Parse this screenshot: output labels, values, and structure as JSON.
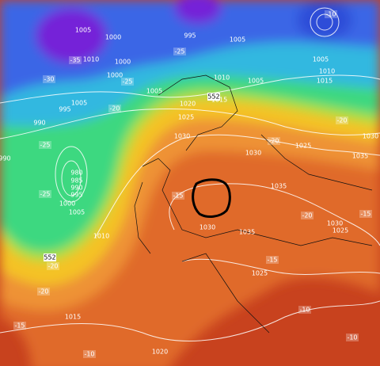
{
  "isobar_labels": [
    "1005",
    "1000",
    "1010",
    "1000",
    "995",
    "1005",
    "1005",
    "1010",
    "1015",
    "1010",
    "1005",
    "1000",
    "1005",
    "1020",
    "1015",
    "1005",
    "995",
    "990",
    "1025",
    "1030",
    "1030",
    "1025",
    "1030",
    "1035",
    "1035",
    "980",
    "985",
    "990",
    "995",
    "1000",
    "1005",
    "1010",
    "1030",
    "1035",
    "1030",
    "1025",
    "1025",
    "1015",
    "1020",
    "990"
  ],
  "temperature_labels": [
    "-35",
    "-30",
    "-25",
    "-25",
    "-20",
    "-25",
    "-25",
    "-20",
    "-20",
    "-15",
    "-20",
    "-15",
    "-15",
    "-20",
    "-20",
    "-15",
    "-10",
    "-10",
    "-10",
    "-10"
  ],
  "geopotential_labels": [
    "552",
    "552"
  ]
}
